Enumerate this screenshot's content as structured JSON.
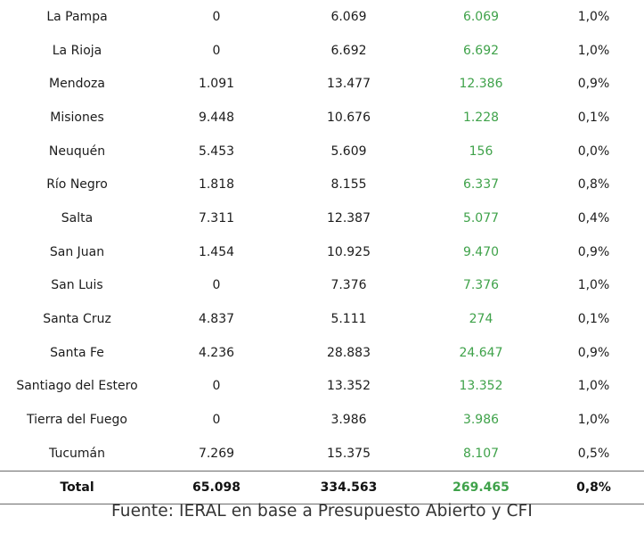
{
  "rows": [
    {
      "province": "La Pampa",
      "col1": "0",
      "col2": "6.069",
      "col3": "6.069",
      "col4": "1,0%"
    },
    {
      "province": "La Rioja",
      "col1": "0",
      "col2": "6.692",
      "col3": "6.692",
      "col4": "1,0%"
    },
    {
      "province": "Mendoza",
      "col1": "1.091",
      "col2": "13.477",
      "col3": "12.386",
      "col4": "0,9%"
    },
    {
      "province": "Misiones",
      "col1": "9.448",
      "col2": "10.676",
      "col3": "1.228",
      "col4": "0,1%"
    },
    {
      "province": "Neuquén",
      "col1": "5.453",
      "col2": "5.609",
      "col3": "156",
      "col4": "0,0%"
    },
    {
      "province": "Río Negro",
      "col1": "1.818",
      "col2": "8.155",
      "col3": "6.337",
      "col4": "0,8%"
    },
    {
      "province": "Salta",
      "col1": "7.311",
      "col2": "12.387",
      "col3": "5.077",
      "col4": "0,4%"
    },
    {
      "province": "San Juan",
      "col1": "1.454",
      "col2": "10.925",
      "col3": "9.470",
      "col4": "0,9%"
    },
    {
      "province": "San Luis",
      "col1": "0",
      "col2": "7.376",
      "col3": "7.376",
      "col4": "1,0%"
    },
    {
      "province": "Santa Cruz",
      "col1": "4.837",
      "col2": "5.111",
      "col3": "274",
      "col4": "0,1%"
    },
    {
      "province": "Santa Fe",
      "col1": "4.236",
      "col2": "28.883",
      "col3": "24.647",
      "col4": "0,9%"
    },
    {
      "province": "Santiago del Estero",
      "col1": "0",
      "col2": "13.352",
      "col3": "13.352",
      "col4": "1,0%"
    },
    {
      "province": "Tierra del Fuego",
      "col1": "0",
      "col2": "3.986",
      "col3": "3.986",
      "col4": "1,0%"
    },
    {
      "province": "Tucumán",
      "col1": "7.269",
      "col2": "15.375",
      "col3": "8.107",
      "col4": "0,5%"
    }
  ],
  "total": {
    "label": "Total",
    "col1": "65.098",
    "col2": "334.563",
    "col3": "269.465",
    "col4": "0,8%"
  },
  "source": "Fuente: IERAL en base a Presupuesto Abierto y CFI",
  "colors": {
    "text": "#1c1c1c",
    "difference": "#3fa24a",
    "rule": "#6b6b6b"
  }
}
